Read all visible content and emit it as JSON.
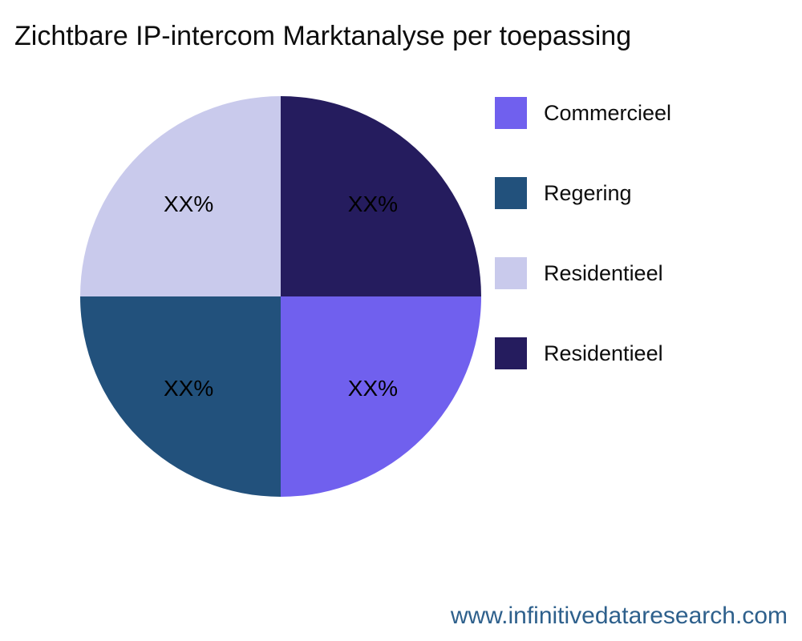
{
  "chart_data": {
    "type": "pie",
    "title": "Zichtbare IP-intercom Marktanalyse per toepassing",
    "source": "www.infinitivedataresearch.com",
    "legend_position": "right",
    "start_angle_deg": 0,
    "direction": "clockwise-from-top",
    "slices": [
      {
        "label": "Residentieel",
        "value": 25,
        "display": "XX%",
        "color": "#251c5e",
        "position": "top-right"
      },
      {
        "label": "Commercieel",
        "value": 25,
        "display": "XX%",
        "color": "#7060ee",
        "position": "bottom-right"
      },
      {
        "label": "Regering",
        "value": 25,
        "display": "XX%",
        "color": "#22517c",
        "position": "bottom-left"
      },
      {
        "label": "Residentieel",
        "value": 25,
        "display": "XX%",
        "color": "#c9caec",
        "position": "top-left"
      }
    ],
    "legend": [
      {
        "label": "Commercieel",
        "color": "#7060ee"
      },
      {
        "label": "Regering",
        "color": "#22517c"
      },
      {
        "label": "Residentieel",
        "color": "#c9caec"
      },
      {
        "label": "Residentieel",
        "color": "#251c5e"
      }
    ],
    "colors": {
      "title_text": "#0d0d0d",
      "label_text": "#000000",
      "source_text": "#2e608c",
      "background": "#ffffff"
    }
  }
}
